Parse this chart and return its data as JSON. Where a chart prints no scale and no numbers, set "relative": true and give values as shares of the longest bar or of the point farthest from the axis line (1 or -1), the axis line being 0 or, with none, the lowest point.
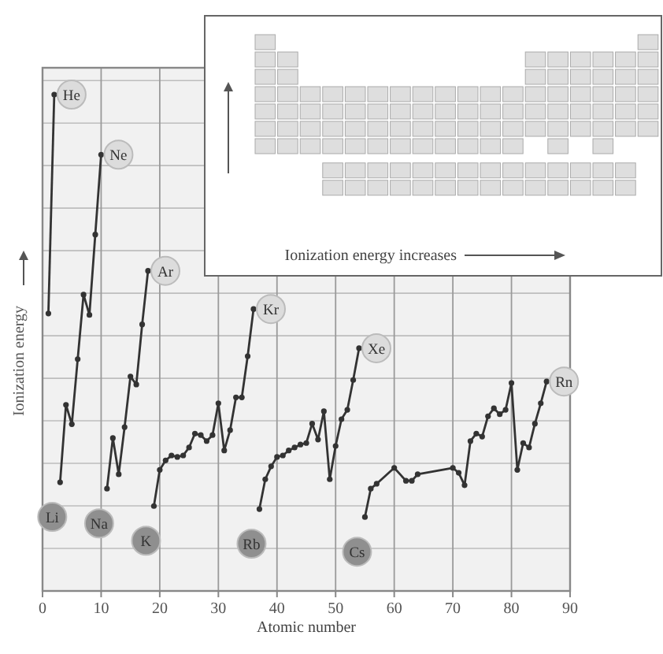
{
  "chart_data": {
    "type": "line",
    "relative": true,
    "xlabel": "Atomic number",
    "ylabel": "Ionization energy",
    "xlim": [
      0,
      90
    ],
    "xticks": [
      0,
      10,
      20,
      30,
      40,
      50,
      60,
      70,
      80,
      90
    ],
    "grid": true,
    "marker": "circle",
    "line_style": "solid",
    "series": [
      {
        "color": "#333333",
        "x": [
          1,
          2
        ],
        "values": [
          0.559,
          1.0
        ]
      },
      {
        "color": "#333333",
        "x": [
          3,
          4,
          5,
          6,
          7,
          8,
          9,
          10
        ],
        "values": [
          0.219,
          0.375,
          0.336,
          0.467,
          0.597,
          0.556,
          0.718,
          0.879
        ]
      },
      {
        "color": "#333333",
        "x": [
          11,
          12,
          13,
          14,
          15,
          16,
          17,
          18
        ],
        "values": [
          0.206,
          0.308,
          0.235,
          0.33,
          0.432,
          0.416,
          0.537,
          0.645
        ]
      },
      {
        "color": "#333333",
        "x": [
          19,
          20,
          21,
          22,
          23,
          24,
          25,
          26,
          27,
          28,
          29,
          30,
          31,
          32,
          33,
          34,
          35,
          36
        ],
        "values": [
          0.171,
          0.244,
          0.263,
          0.273,
          0.27,
          0.273,
          0.289,
          0.317,
          0.314,
          0.302,
          0.314,
          0.378,
          0.283,
          0.324,
          0.39,
          0.39,
          0.473,
          0.568
        ]
      },
      {
        "color": "#333333",
        "x": [
          37,
          38,
          39,
          40,
          41,
          42,
          43,
          44,
          45,
          46,
          47,
          48,
          49,
          50,
          51,
          52,
          53,
          54
        ],
        "values": [
          0.165,
          0.225,
          0.251,
          0.27,
          0.273,
          0.283,
          0.289,
          0.295,
          0.298,
          0.337,
          0.305,
          0.362,
          0.225,
          0.292,
          0.346,
          0.365,
          0.425,
          0.489
        ]
      },
      {
        "color": "#333333",
        "x": [
          55,
          56,
          57,
          60,
          62,
          63,
          64,
          70,
          71,
          72,
          73,
          74,
          75,
          76,
          77,
          78,
          79,
          80,
          81,
          82,
          83,
          84,
          85,
          86
        ],
        "values": [
          0.149,
          0.206,
          0.216,
          0.248,
          0.222,
          0.222,
          0.235,
          0.248,
          0.238,
          0.213,
          0.302,
          0.317,
          0.311,
          0.352,
          0.368,
          0.356,
          0.365,
          0.419,
          0.244,
          0.298,
          0.289,
          0.337,
          0.378,
          0.422
        ]
      }
    ],
    "annotations": [
      {
        "text": "He",
        "x": 2,
        "y": 1.0
      },
      {
        "text": "Ne",
        "x": 10,
        "y": 0.879
      },
      {
        "text": "Ar",
        "x": 18,
        "y": 0.645
      },
      {
        "text": "Kr",
        "x": 36,
        "y": 0.568
      },
      {
        "text": "Xe",
        "x": 54,
        "y": 0.489
      },
      {
        "text": "Rn",
        "x": 86,
        "y": 0.422
      },
      {
        "text": "Li",
        "x": 3,
        "y": 0.219
      },
      {
        "text": "Na",
        "x": 11,
        "y": 0.206
      },
      {
        "text": "K",
        "x": 19,
        "y": 0.171
      },
      {
        "text": "Rb",
        "x": 37,
        "y": 0.165
      },
      {
        "text": "Cs",
        "x": 55,
        "y": 0.149
      },
      "Ionization energy increases"
    ]
  }
}
